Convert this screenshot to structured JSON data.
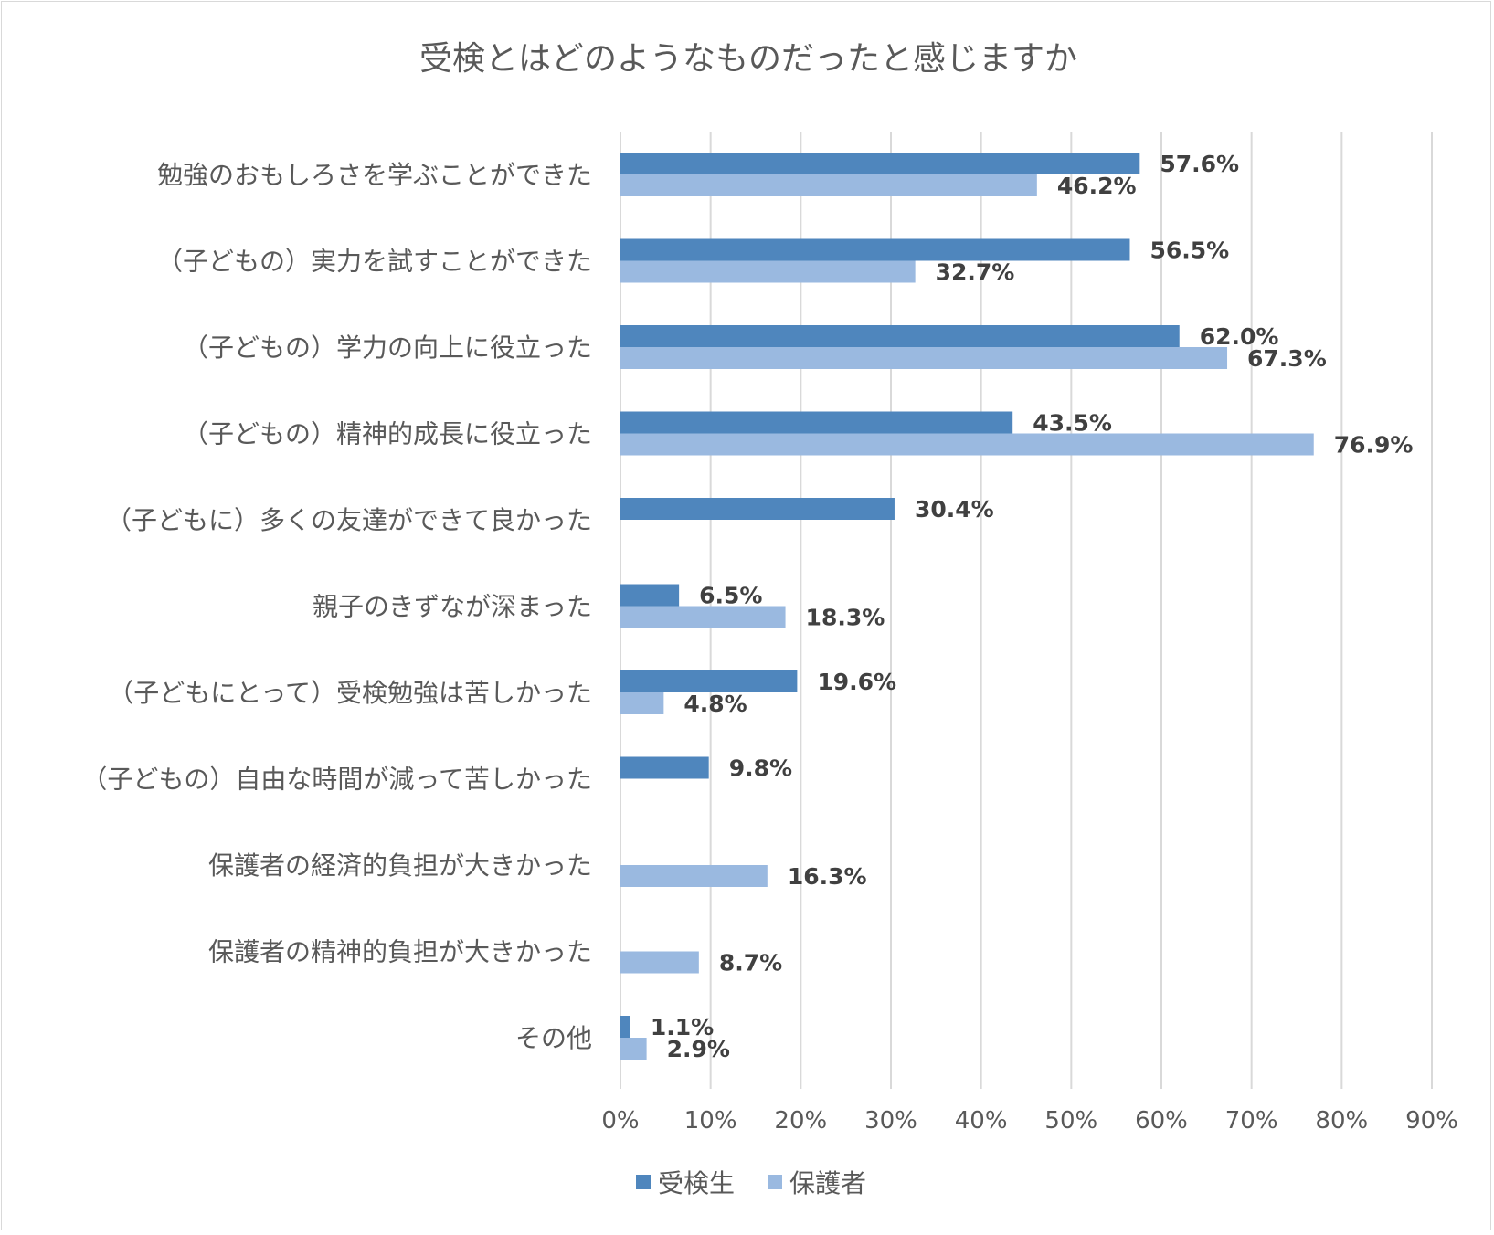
{
  "chart_data": {
    "type": "bar",
    "orientation": "horizontal",
    "title": "受検とはどのようなものだったと感じますか",
    "categories": [
      "勉強のおもしろさを学ぶことができた",
      "（子どもの）実力を試すことができた",
      "（子どもの）学力の向上に役立った",
      "（子どもの）精神的成長に役立った",
      "（子どもに）多くの友達ができて良かった",
      "親子のきずなが深まった",
      "（子どもにとって）受検勉強は苦しかった",
      "（子どもの）自由な時間が減って苦しかった",
      "保護者の経済的負担が大きかった",
      "保護者の精神的負担が大きかった",
      "その他"
    ],
    "series": [
      {
        "name": "受検生",
        "color": "#4f86bd",
        "values": [
          57.6,
          56.5,
          62.0,
          43.5,
          30.4,
          6.5,
          19.6,
          9.8,
          null,
          null,
          1.1
        ],
        "labels": [
          "57.6%",
          "56.5%",
          "62.0%",
          "43.5%",
          "30.4%",
          "6.5%",
          "19.6%",
          "9.8%",
          null,
          null,
          "1.1%"
        ]
      },
      {
        "name": "保護者",
        "color": "#9ab9e0",
        "values": [
          46.2,
          32.7,
          67.3,
          76.9,
          null,
          18.3,
          4.8,
          null,
          16.3,
          8.7,
          2.9
        ],
        "labels": [
          "46.2%",
          "32.7%",
          "67.3%",
          "76.9%",
          null,
          "18.3%",
          "4.8%",
          null,
          "16.3%",
          "8.7%",
          "2.9%"
        ]
      }
    ],
    "xlim": [
      0,
      90
    ],
    "xticks": [
      "0%",
      "10%",
      "20%",
      "30%",
      "40%",
      "50%",
      "60%",
      "70%",
      "80%",
      "90%"
    ],
    "grid": true,
    "legend": "bottom"
  }
}
